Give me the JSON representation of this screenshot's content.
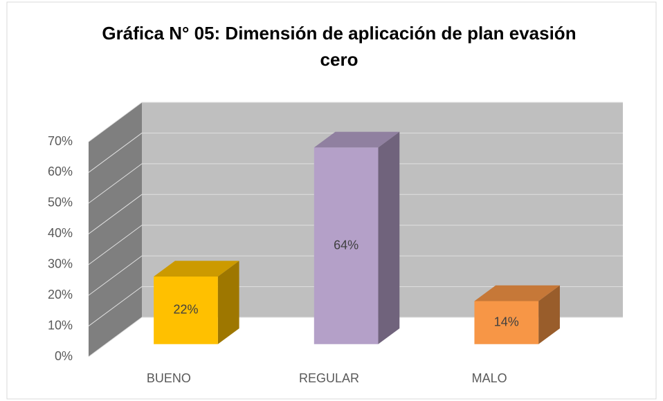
{
  "chart_data": {
    "type": "bar3d",
    "title": [
      "Gráfica N° 05: Dimensión de aplicación de plan evasión",
      "cero"
    ],
    "categories": [
      "BUENO",
      "REGULAR",
      "MALO"
    ],
    "values": [
      22,
      64,
      14
    ],
    "value_labels": [
      "22%",
      "64%",
      "14%"
    ],
    "colors": [
      "#ffc000",
      "#b4a0c8",
      "#f79646"
    ],
    "ylim": [
      0,
      70
    ],
    "yticks": [
      {
        "value": 0,
        "label": "0%"
      },
      {
        "value": 10,
        "label": "10%"
      },
      {
        "value": 20,
        "label": "20%"
      },
      {
        "value": 30,
        "label": "30%"
      },
      {
        "value": 40,
        "label": "40%"
      },
      {
        "value": 50,
        "label": "50%"
      },
      {
        "value": 60,
        "label": "60%"
      },
      {
        "value": 70,
        "label": "70%"
      }
    ],
    "grid": true
  }
}
